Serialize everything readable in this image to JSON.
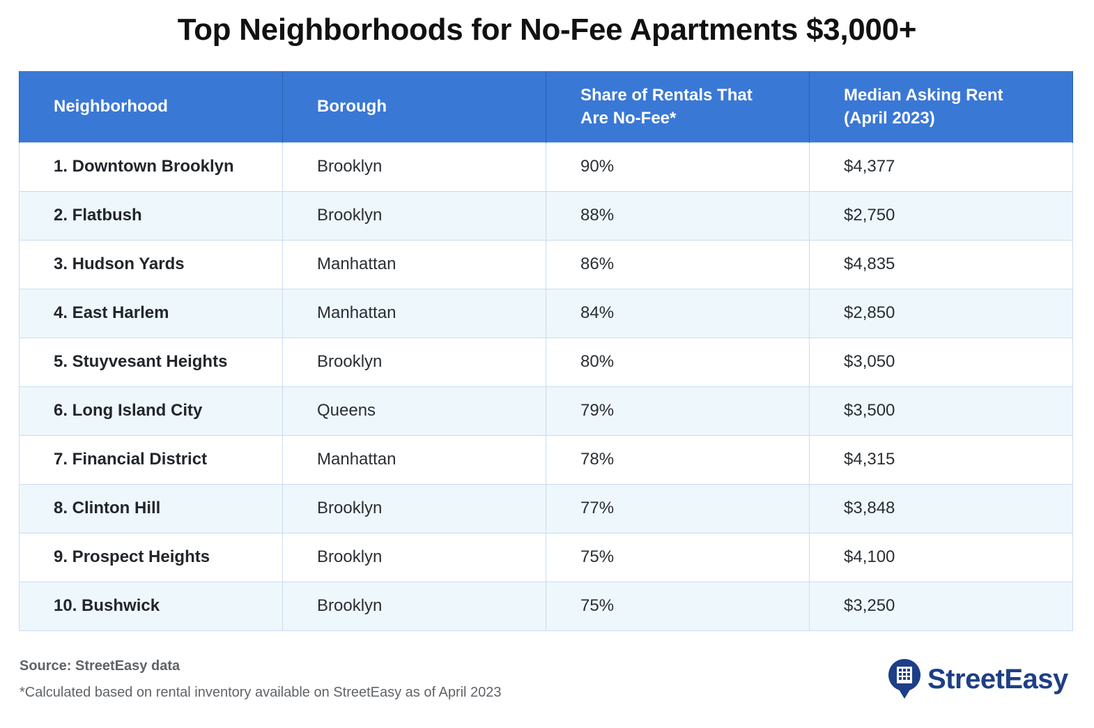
{
  "title": "Top Neighborhoods for No-Fee Apartments $3,000+",
  "chart_data": {
    "type": "table",
    "title": "Top Neighborhoods for No-Fee Apartments $3,000+",
    "columns": [
      "Neighborhood",
      "Borough",
      "Share of Rentals That Are No-Fee*",
      "Median Asking Rent (April 2023)"
    ],
    "rows": [
      [
        "1. Downtown Brooklyn",
        "Brooklyn",
        "90%",
        "$4,377"
      ],
      [
        "2. Flatbush",
        "Brooklyn",
        "88%",
        "$2,750"
      ],
      [
        "3. Hudson Yards",
        "Manhattan",
        "86%",
        "$4,835"
      ],
      [
        "4. East Harlem",
        "Manhattan",
        "84%",
        "$2,850"
      ],
      [
        "5. Stuyvesant Heights",
        "Brooklyn",
        "80%",
        "$3,050"
      ],
      [
        "6. Long Island City",
        "Queens",
        "79%",
        "$3,500"
      ],
      [
        "7. Financial District",
        "Manhattan",
        "78%",
        "$4,315"
      ],
      [
        "8. Clinton Hill",
        "Brooklyn",
        "77%",
        "$3,848"
      ],
      [
        "9. Prospect Heights",
        "Brooklyn",
        "75%",
        "$4,100"
      ],
      [
        "10. Bushwick",
        "Brooklyn",
        "75%",
        "$3,250"
      ]
    ]
  },
  "footer": {
    "source": "Source: StreetEasy data",
    "footnote": "*Calculated based on rental inventory available on StreetEasy as of April 2023",
    "brand": "StreetEasy"
  },
  "colors": {
    "header_bg": "#3a78d6",
    "stripe": "#eef7fc",
    "brand": "#1d3f87"
  }
}
